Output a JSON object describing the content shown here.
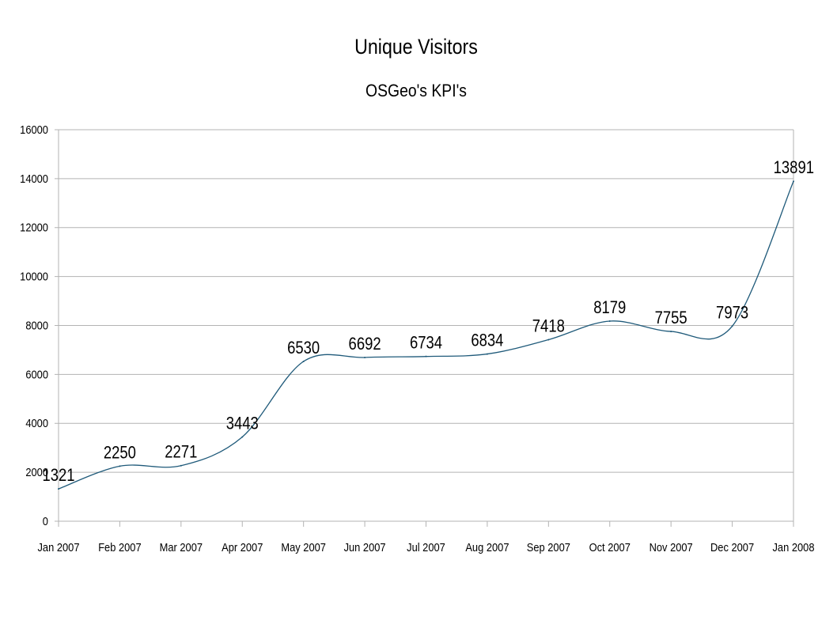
{
  "chart_data": {
    "type": "line",
    "title": "Unique Visitors",
    "subtitle": "OSGeo's KPI's",
    "xlabel": "",
    "ylabel": "",
    "categories": [
      "Jan 2007",
      "Feb 2007",
      "Mar 2007",
      "Apr 2007",
      "May 2007",
      "Jun 2007",
      "Jul 2007",
      "Aug 2007",
      "Sep 2007",
      "Oct 2007",
      "Nov 2007",
      "Dec 2007",
      "Jan 2008"
    ],
    "series": [
      {
        "values": [
          1321,
          2250,
          2271,
          3443,
          6530,
          6692,
          6734,
          6834,
          7418,
          8179,
          7755,
          7973,
          13891
        ]
      }
    ],
    "ylim": [
      0,
      16000
    ],
    "yticks": [
      0,
      2000,
      4000,
      6000,
      8000,
      10000,
      12000,
      14000,
      16000
    ],
    "grid": true,
    "smooth": true,
    "legend": "none",
    "colors": {
      "line": "#1f5a7a",
      "grid": "#b3b3b3",
      "axis": "#b3b3b3"
    }
  }
}
